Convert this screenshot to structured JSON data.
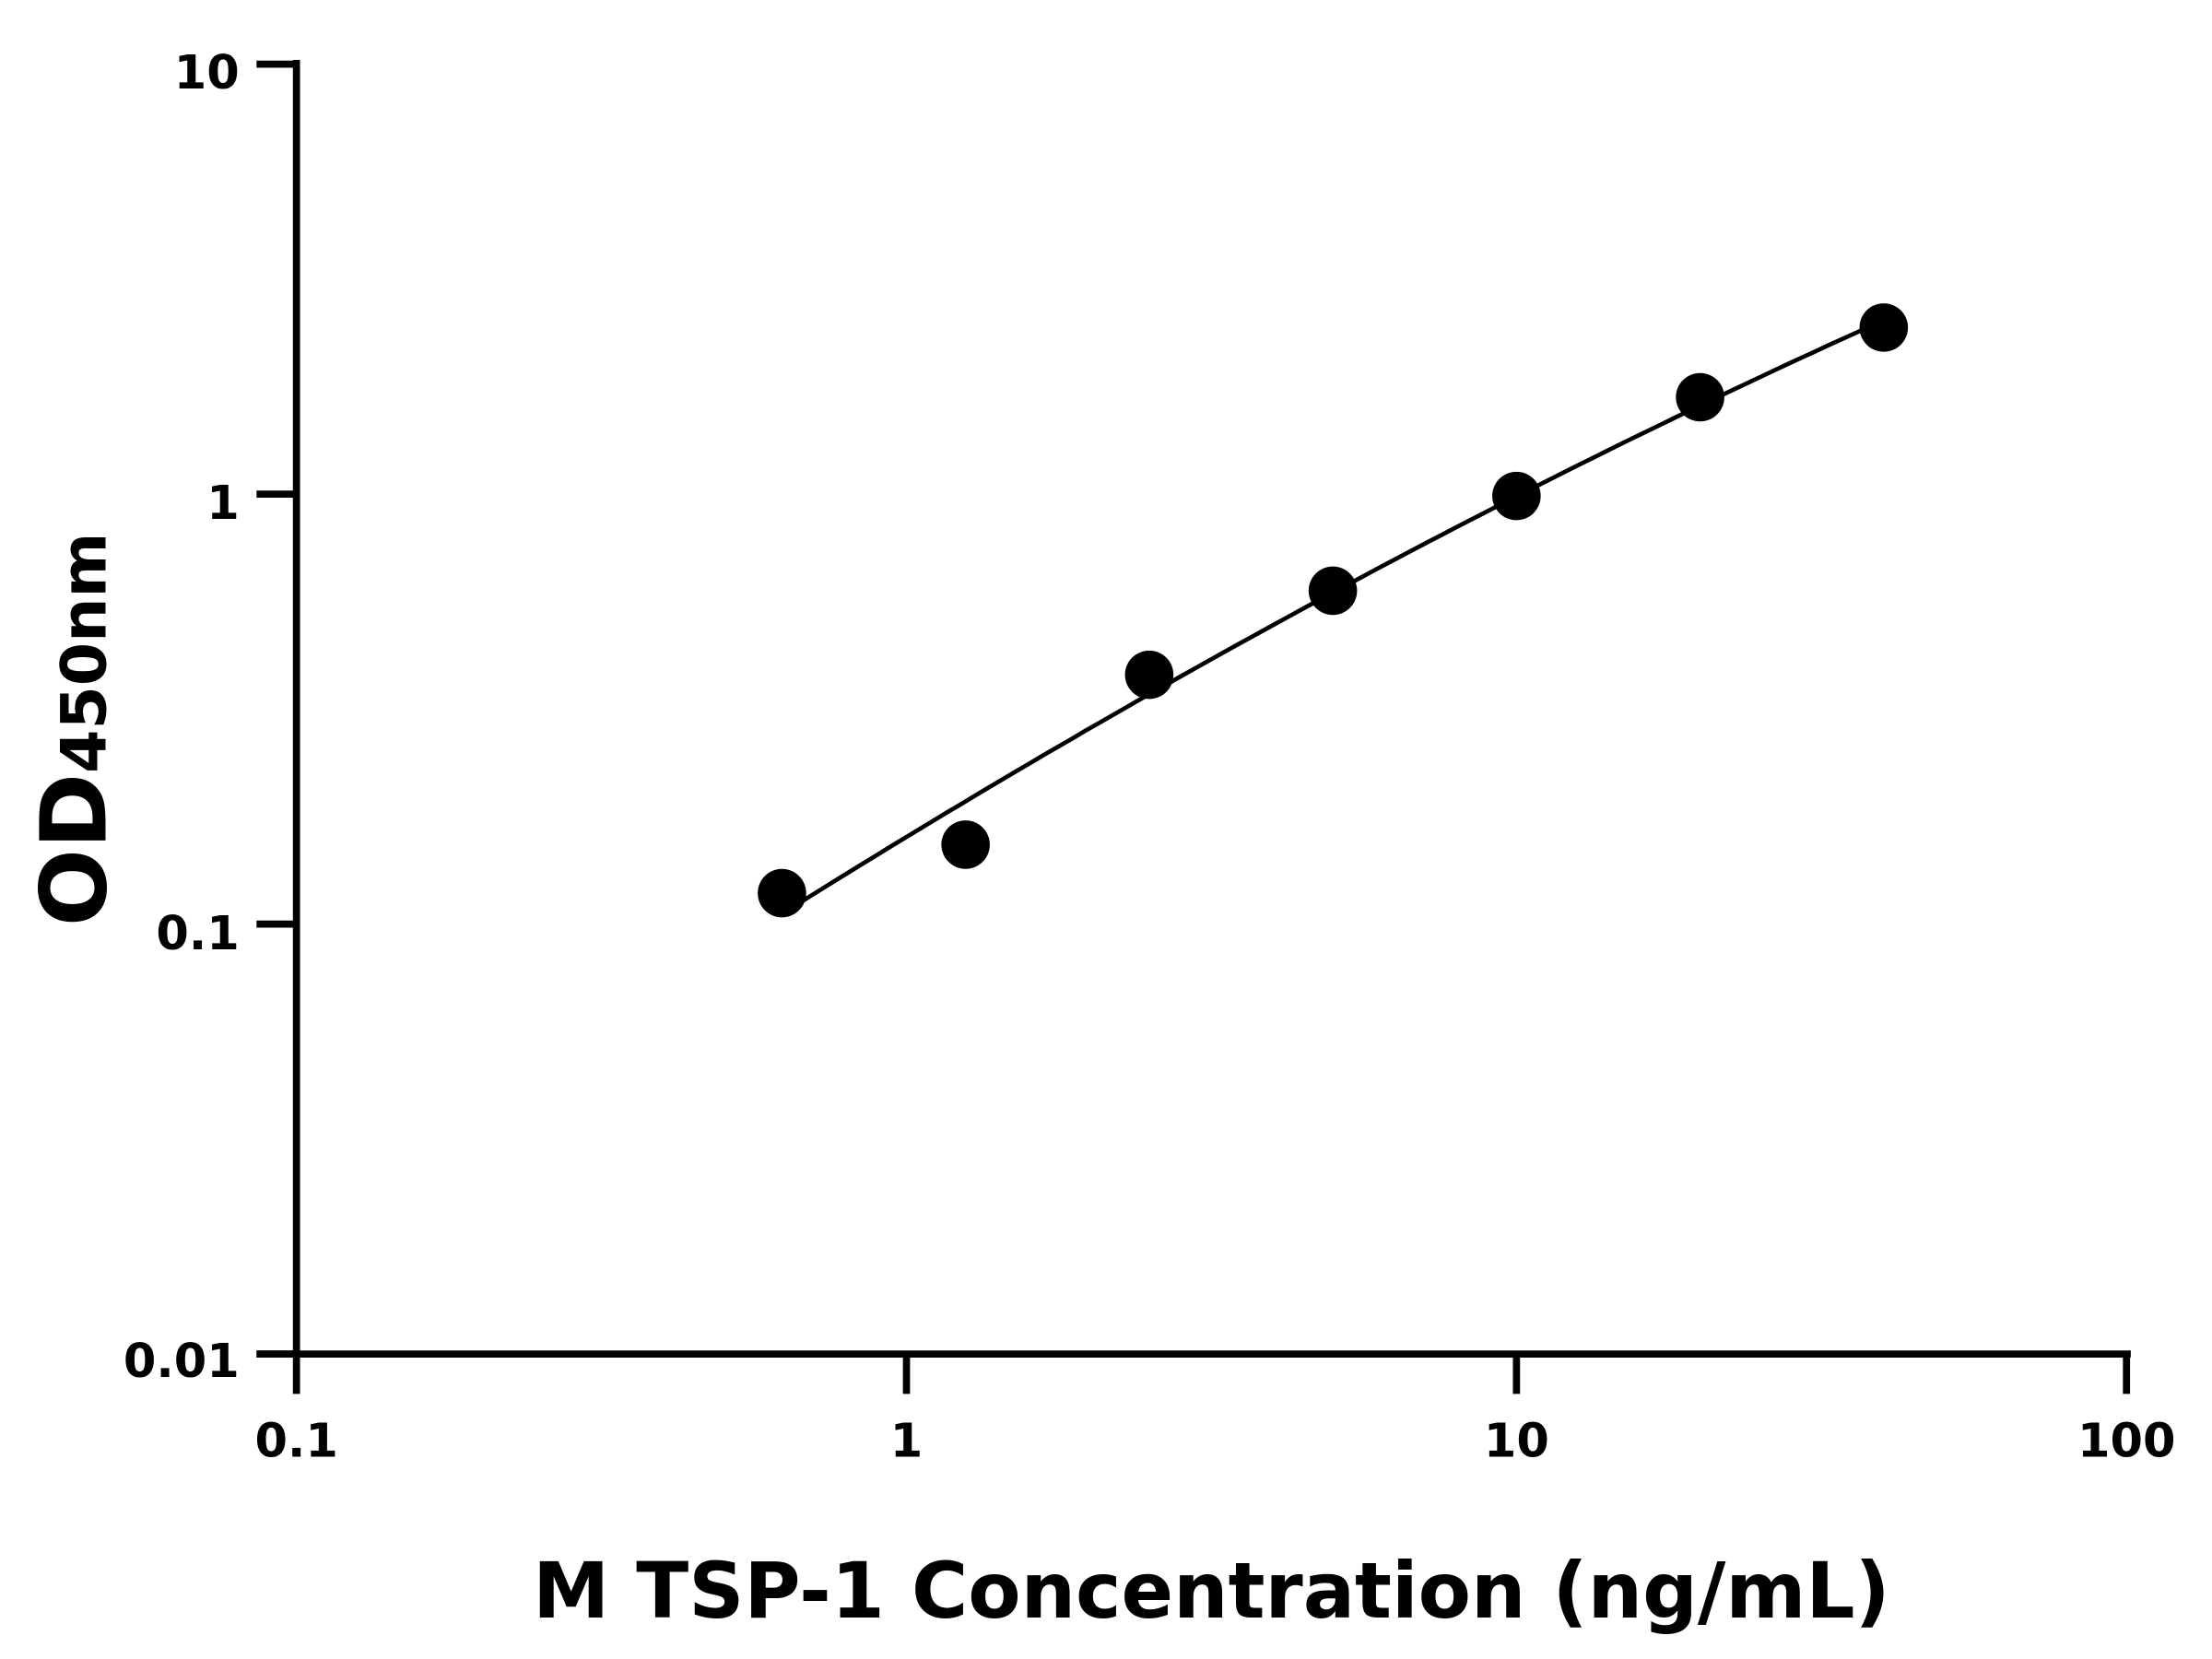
{
  "chart_data": {
    "type": "scatter",
    "title": "",
    "xlabel": "M TSP-1 Concentration (ng/mL)",
    "ylabel_main": "OD",
    "ylabel_sub": "450nm",
    "x_scale": "log",
    "y_scale": "log",
    "xlim": [
      0.1,
      100
    ],
    "ylim": [
      0.01,
      10
    ],
    "x_ticks": [
      "0.1",
      "1",
      "10",
      "100"
    ],
    "y_ticks": [
      "0.01",
      "0.1",
      "1",
      "10"
    ],
    "grid": false,
    "legend": "none",
    "marker_color": "#000000",
    "fit_line": true,
    "series": [
      {
        "x": [
          0.625,
          1.25,
          2.5,
          5,
          10,
          20,
          40
        ],
        "y": [
          0.118,
          0.153,
          0.38,
          0.596,
          0.99,
          1.68,
          2.44
        ]
      }
    ]
  }
}
